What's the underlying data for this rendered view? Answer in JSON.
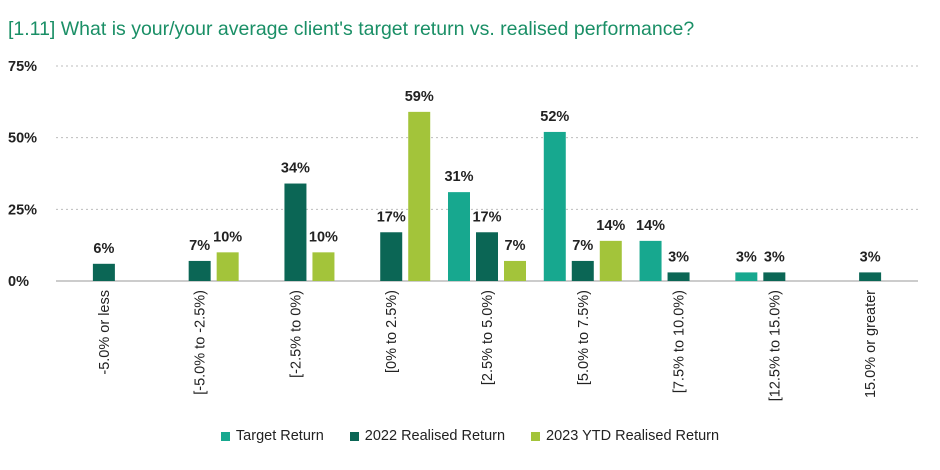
{
  "chart_data": {
    "type": "bar",
    "title": "[1.11] What is your/your average client's target return vs. realised performance?",
    "xlabel": "",
    "ylabel": "",
    "ylim": [
      0,
      75
    ],
    "yticks": [
      "0%",
      "25%",
      "50%",
      "75%"
    ],
    "ytick_values": [
      0,
      25,
      50,
      75
    ],
    "grid": true,
    "legend_position": "bottom",
    "categories": [
      "-5.0% or less",
      "[-5.0% to -2.5%)",
      "[-2.5% to 0%)",
      "[0% to 2.5%)",
      "[2.5% to 5.0%)",
      "[5.0% to 7.5%)",
      "[7.5% to 10.0%)",
      "[12.5% to 15.0%)",
      "15.0% or greater"
    ],
    "series": [
      {
        "name": "Target Return",
        "color": "#17a88f",
        "values": [
          null,
          null,
          null,
          null,
          31,
          52,
          14,
          3,
          null
        ]
      },
      {
        "name": "2022 Realised Return",
        "color": "#0b6655",
        "values": [
          6,
          7,
          34,
          17,
          17,
          7,
          3,
          3,
          3
        ]
      },
      {
        "name": "2023 YTD Realised Return",
        "color": "#a3c43a",
        "values": [
          null,
          10,
          10,
          59,
          7,
          14,
          null,
          null,
          null
        ]
      }
    ]
  }
}
